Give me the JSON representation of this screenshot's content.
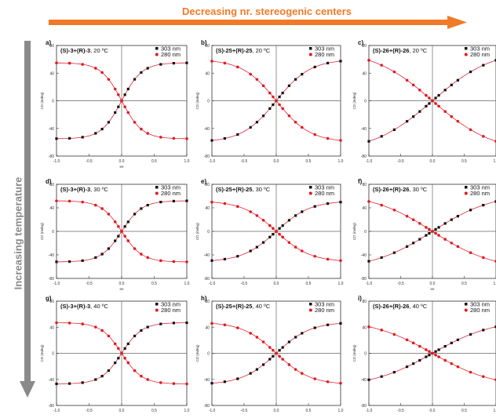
{
  "header": {
    "title": "Decreasing nr. stereogenic centers"
  },
  "side": {
    "title": "Increasing temperature"
  },
  "colors": {
    "orange_arrow": "#f07a28",
    "gray_arrow": "#8a8a8a",
    "series_black": "#111111",
    "series_red": "#e31a1c",
    "fit_red": "#e0263a"
  },
  "chart_data": [
    {
      "type": "scatter",
      "panel": "a)",
      "compound": "(S)-3+(R)-3",
      "temp": ", 20 ºC",
      "xlabel": "ee",
      "ylabel": "CD (mdeg)",
      "xlim": [
        -1,
        1
      ],
      "ylim": [
        -80,
        80
      ],
      "xticks": [
        "-1.0",
        "-0.5",
        "0.0",
        "0.5",
        "1.0"
      ],
      "yticks": [
        "-80",
        "-40",
        "0",
        "40",
        "80"
      ],
      "legend": [
        "303 nm",
        "280 nm"
      ],
      "amp": 55,
      "shape": "sigmoid"
    },
    {
      "type": "scatter",
      "panel": "b)",
      "compound": "(S)-25+(R)-25",
      "temp": ", 20 ºC",
      "xlabel": "",
      "ylabel": "CD (mdeg)",
      "xlim": [
        -1,
        1
      ],
      "ylim": [
        -80,
        80
      ],
      "xticks": [
        "-1.0",
        "-0.5",
        "0.0",
        "0.5",
        "1.0"
      ],
      "yticks": [
        "-80",
        "-40",
        "0",
        "40",
        "80"
      ],
      "legend": [
        "303 nm",
        "280 nm"
      ],
      "amp": 60,
      "shape": "tanh"
    },
    {
      "type": "scatter",
      "panel": "c)",
      "compound": "(S)-26+(R)-26",
      "temp": ", 20 ºC",
      "xlabel": "",
      "ylabel": "CD (mdeg)",
      "xlim": [
        -1,
        1
      ],
      "ylim": [
        -80,
        80
      ],
      "xticks": [
        "-1.0",
        "-0.5",
        "0.0",
        "0.5",
        "1.0"
      ],
      "yticks": [
        "-80",
        "-40",
        "0",
        "40",
        "80"
      ],
      "legend": [
        "303 nm",
        "280 nm"
      ],
      "amp": 75,
      "shape": "linear"
    },
    {
      "type": "scatter",
      "panel": "d)",
      "compound": "(S)-3+(R)-3",
      "temp": ", 30 ºC",
      "xlabel": "ee",
      "ylabel": "CD (mdeg)",
      "xlim": [
        -1,
        1
      ],
      "ylim": [
        -80,
        80
      ],
      "xticks": [
        "-1.0",
        "-0.5",
        "0.0",
        "0.5",
        "1.0"
      ],
      "yticks": [
        "-80",
        "-40",
        "0",
        "40",
        "80"
      ],
      "legend": [
        "303 nm",
        "280 nm"
      ],
      "amp": 52,
      "shape": "sigmoid"
    },
    {
      "type": "scatter",
      "panel": "e)",
      "compound": "(S)-25+(R)-25",
      "temp": ", 30 ºC",
      "xlabel": "",
      "ylabel": "CD (mdeg)",
      "xlim": [
        -1,
        1
      ],
      "ylim": [
        -80,
        80
      ],
      "xticks": [
        "-1.0",
        "-0.5",
        "0.0",
        "0.5",
        "1.0"
      ],
      "yticks": [
        "-80",
        "-40",
        "0",
        "40",
        "80"
      ],
      "legend": [
        "303 nm",
        "280 nm"
      ],
      "amp": 52,
      "shape": "tanh"
    },
    {
      "type": "scatter",
      "panel": "f)",
      "compound": "(S)-26+(R)-26",
      "temp": ", 30 ºC",
      "xlabel": "ee",
      "ylabel": "CD (mdeg)",
      "xlim": [
        -1,
        1
      ],
      "ylim": [
        -80,
        80
      ],
      "xticks": [
        "-1.0",
        "-0.5",
        "0.0",
        "0.5",
        "1.0"
      ],
      "yticks": [
        "-80",
        "-40",
        "0",
        "40",
        "80"
      ],
      "legend": [
        "303 nm",
        "280 nm"
      ],
      "amp": 65,
      "shape": "linear"
    },
    {
      "type": "scatter",
      "panel": "g)",
      "compound": "(S)-3+(R)-3",
      "temp": ", 40 ºC",
      "xlabel": "",
      "ylabel": "CD (mdeg)",
      "xlim": [
        -1,
        1
      ],
      "ylim": [
        -80,
        80
      ],
      "xticks": [
        "-1.0",
        "-0.5",
        "0.0",
        "0.5",
        "1.0"
      ],
      "yticks": [
        "-80",
        "-40",
        "0",
        "40",
        "80"
      ],
      "legend": [
        "303 nm",
        "280 nm"
      ],
      "amp": 47,
      "shape": "sigmoid"
    },
    {
      "type": "scatter",
      "panel": "h)",
      "compound": "(S)-25+(R)-25",
      "temp": ", 40 ºC",
      "xlabel": "",
      "ylabel": "CD (mdeg)",
      "xlim": [
        -1,
        1
      ],
      "ylim": [
        -80,
        80
      ],
      "xticks": [
        "-1.0",
        "-0.5",
        "0.0",
        "0.5",
        "1.0"
      ],
      "yticks": [
        "-80",
        "-40",
        "0",
        "40",
        "80"
      ],
      "legend": [
        "303 nm",
        "280 nm"
      ],
      "amp": 48,
      "shape": "tanh"
    },
    {
      "type": "scatter",
      "panel": "i)",
      "compound": "(S)-26+(R)-26",
      "temp": ", 40 ºC",
      "xlabel": "",
      "ylabel": "CD (mdeg)",
      "xlim": [
        -1,
        1
      ],
      "ylim": [
        -80,
        80
      ],
      "xticks": [
        "-1.0",
        "-0.5",
        "0.0",
        "0.5",
        "1.0"
      ],
      "yticks": [
        "-80",
        "-40",
        "0",
        "40",
        "80"
      ],
      "legend": [
        "303 nm",
        "280 nm"
      ],
      "amp": 52,
      "shape": "linear"
    }
  ]
}
